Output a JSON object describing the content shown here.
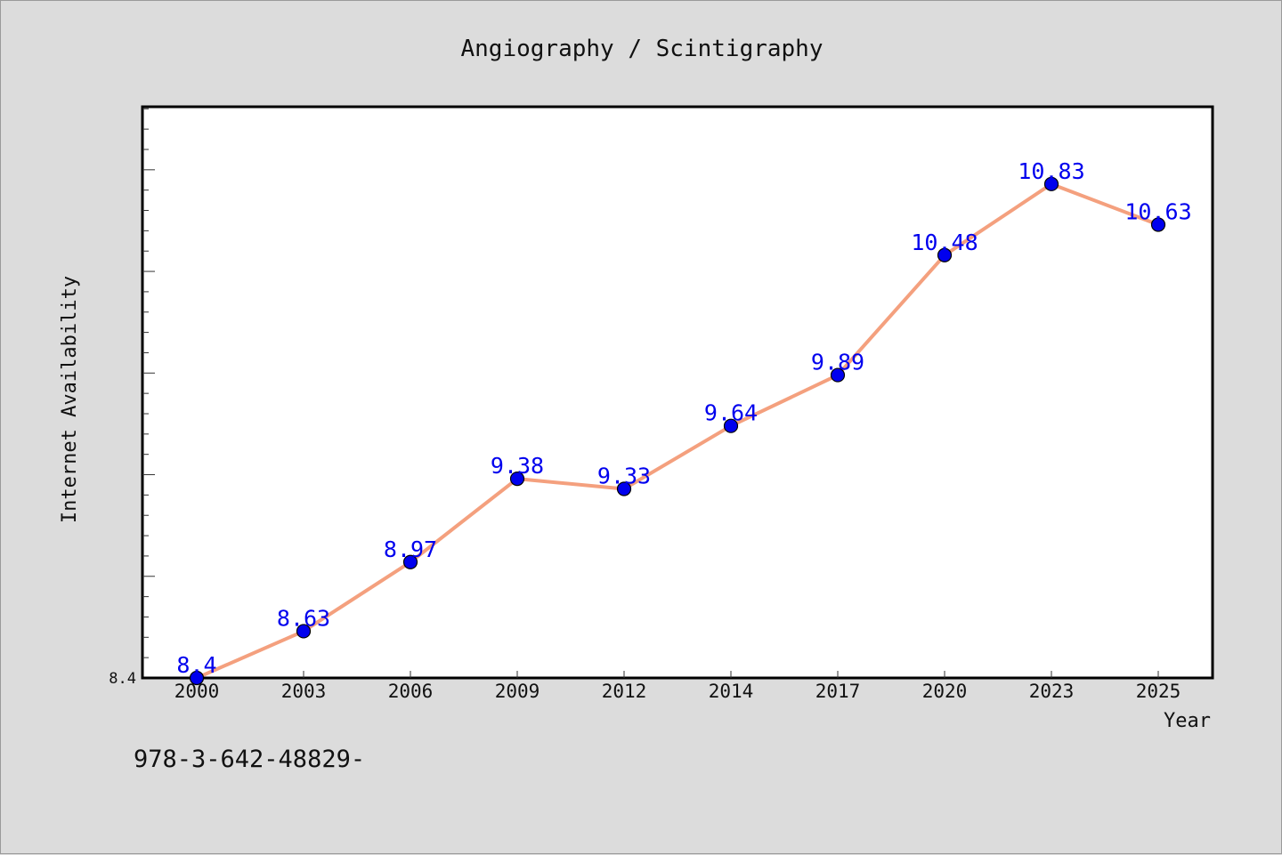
{
  "chart_data": {
    "type": "line",
    "title": "Angiography / Scintigraphy",
    "xlabel": "Year",
    "ylabel": "Internet Availability",
    "categories": [
      "2000",
      "2003",
      "2006",
      "2009",
      "2012",
      "2014",
      "2017",
      "2020",
      "2023",
      "2025"
    ],
    "series": [
      {
        "values": [
          8.4,
          8.63,
          8.97,
          9.38,
          9.33,
          9.64,
          9.89,
          10.48,
          10.83,
          10.63
        ],
        "labels": [
          "8.4",
          "8.63",
          "8.97",
          "9.38",
          "9.33",
          "9.64",
          "9.89",
          "10.48",
          "10.83",
          "10.63"
        ],
        "line_color": "#f4a07e",
        "marker_color": "#0000ee"
      }
    ],
    "y_tick_label": "8.4",
    "ylim": [
      8.4,
      11.21
    ],
    "grid": false,
    "legend": "none"
  },
  "footer": {
    "text": "978-3-642-48829-"
  }
}
